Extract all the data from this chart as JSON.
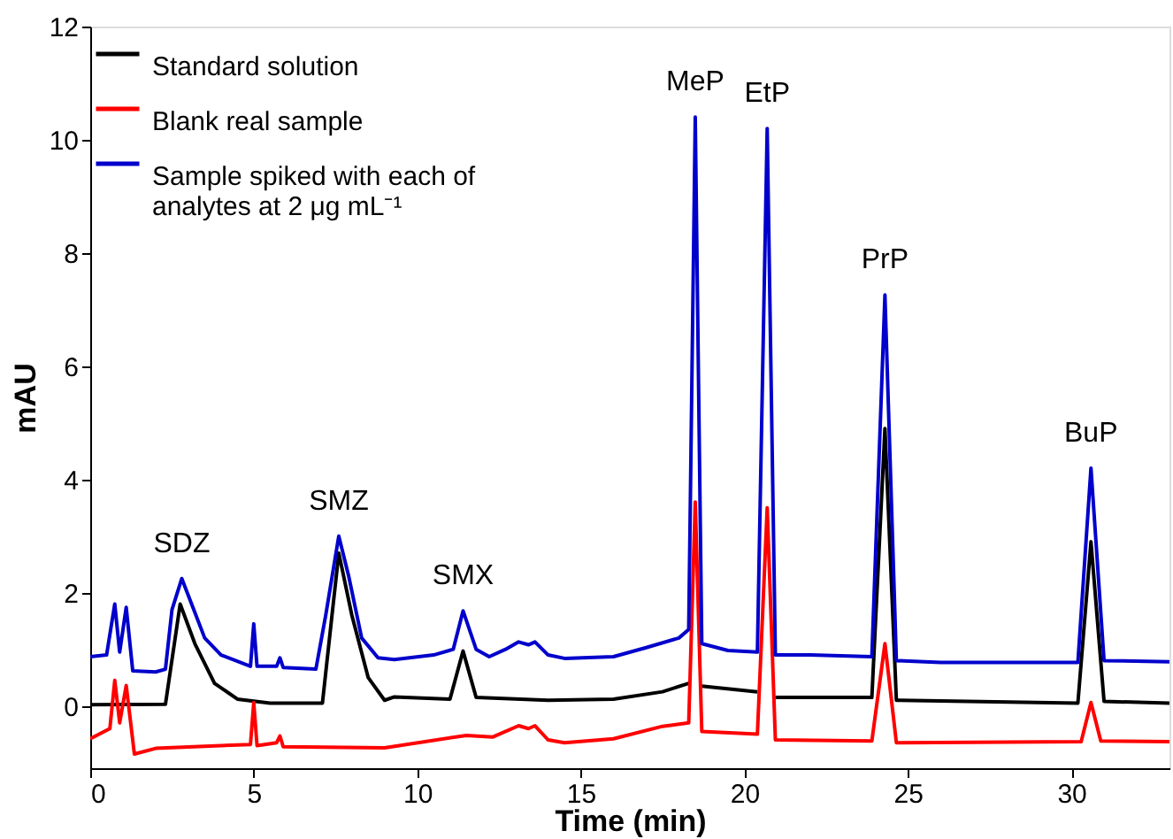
{
  "chart_data": {
    "type": "line",
    "xlabel": "Time (min)",
    "ylabel": "mAU",
    "xlim": [
      0,
      33
    ],
    "xticks": [
      0,
      5,
      10,
      15,
      20,
      25,
      30
    ],
    "ylim": [
      -1.1,
      12
    ],
    "yticks": [
      0,
      2,
      4,
      6,
      8,
      10,
      12
    ],
    "grid": false,
    "legend": "top left",
    "line_style": "solid",
    "marker": "none",
    "annotations": [
      {
        "text": "SDZ",
        "x": 2.8,
        "y": 2.25
      },
      {
        "text": "SMZ",
        "x": 7.6,
        "y": 3.0
      },
      {
        "text": "SMX",
        "x": 11.4,
        "y": 1.68
      },
      {
        "text": "MeP",
        "x": 18.5,
        "y": 10.4
      },
      {
        "text": "EtP",
        "x": 20.7,
        "y": 10.2
      },
      {
        "text": "PrP",
        "x": 24.3,
        "y": 7.26
      },
      {
        "text": "BuP",
        "x": 30.6,
        "y": 4.2
      }
    ],
    "series": [
      {
        "name": "Standard solution",
        "color": "#000000",
        "x": [
          0,
          2.3,
          2.75,
          3.2,
          3.8,
          4.5,
          5.5,
          7.1,
          7.6,
          8.0,
          8.5,
          9.0,
          9.3,
          11.0,
          11.4,
          11.8,
          14,
          16,
          17.5,
          18.3,
          18.5,
          18.7,
          20.4,
          20.7,
          20.95,
          23.9,
          24.3,
          24.65,
          30.2,
          30.6,
          31.0,
          33
        ],
        "values": [
          0.02,
          0.03,
          1.8,
          1.1,
          0.4,
          0.12,
          0.05,
          0.05,
          2.7,
          1.6,
          0.5,
          0.1,
          0.16,
          0.12,
          0.97,
          0.15,
          0.1,
          0.12,
          0.25,
          0.4,
          null,
          0.35,
          0.25,
          null,
          0.15,
          0.15,
          4.9,
          0.1,
          0.05,
          2.9,
          0.08,
          0.05
        ]
      },
      {
        "name": "Blank real sample",
        "color": "#ff0000",
        "x": [
          0,
          0.6,
          0.75,
          0.9,
          1.1,
          1.35,
          2,
          4.9,
          5.0,
          5.1,
          5.7,
          5.8,
          5.9,
          9,
          11.5,
          12.3,
          13.1,
          13.4,
          13.6,
          14.0,
          14.5,
          16,
          17.5,
          18.3,
          18.5,
          18.7,
          20.4,
          20.7,
          20.95,
          23.9,
          24.3,
          24.65,
          30.3,
          30.6,
          30.9,
          33
        ],
        "values": [
          -0.58,
          -0.4,
          0.45,
          -0.3,
          0.36,
          -0.85,
          -0.75,
          -0.68,
          0.06,
          -0.7,
          -0.65,
          -0.53,
          -0.72,
          -0.74,
          -0.52,
          -0.55,
          -0.35,
          -0.4,
          -0.35,
          -0.6,
          -0.65,
          -0.58,
          -0.36,
          -0.3,
          3.6,
          -0.45,
          -0.5,
          3.5,
          -0.6,
          -0.62,
          1.1,
          -0.65,
          -0.63,
          0.06,
          -0.62,
          -0.63
        ]
      },
      {
        "name": "Sample spiked with each of analytes at 2 μg mL⁻¹",
        "color": "#0000cc",
        "x": [
          0,
          0.5,
          0.75,
          0.9,
          1.1,
          1.3,
          2.0,
          2.3,
          2.5,
          2.8,
          3.1,
          3.5,
          4.0,
          4.9,
          5.0,
          5.1,
          5.7,
          5.8,
          5.9,
          6.9,
          7.2,
          7.6,
          7.9,
          8.3,
          8.8,
          9.3,
          10.5,
          11.1,
          11.4,
          11.8,
          12.2,
          12.7,
          13.1,
          13.4,
          13.6,
          14.0,
          14.5,
          16.0,
          17.0,
          18.0,
          18.3,
          18.5,
          18.7,
          19.5,
          20.4,
          20.7,
          20.95,
          22,
          23.9,
          24.3,
          24.65,
          26,
          30.2,
          30.6,
          31.0,
          33
        ],
        "values": [
          0.87,
          0.9,
          1.8,
          0.95,
          1.74,
          0.62,
          0.6,
          0.65,
          1.7,
          2.25,
          1.8,
          1.2,
          0.9,
          0.7,
          1.45,
          0.7,
          0.7,
          0.85,
          0.68,
          0.65,
          1.6,
          3.0,
          2.3,
          1.2,
          0.85,
          0.82,
          0.9,
          1.0,
          1.68,
          1.0,
          0.87,
          1.0,
          1.13,
          1.08,
          1.13,
          0.9,
          0.84,
          0.87,
          1.03,
          1.2,
          1.35,
          10.4,
          1.1,
          0.98,
          0.95,
          10.2,
          0.9,
          0.9,
          0.87,
          7.26,
          0.8,
          0.77,
          0.77,
          4.2,
          0.8,
          0.78
        ]
      }
    ]
  }
}
